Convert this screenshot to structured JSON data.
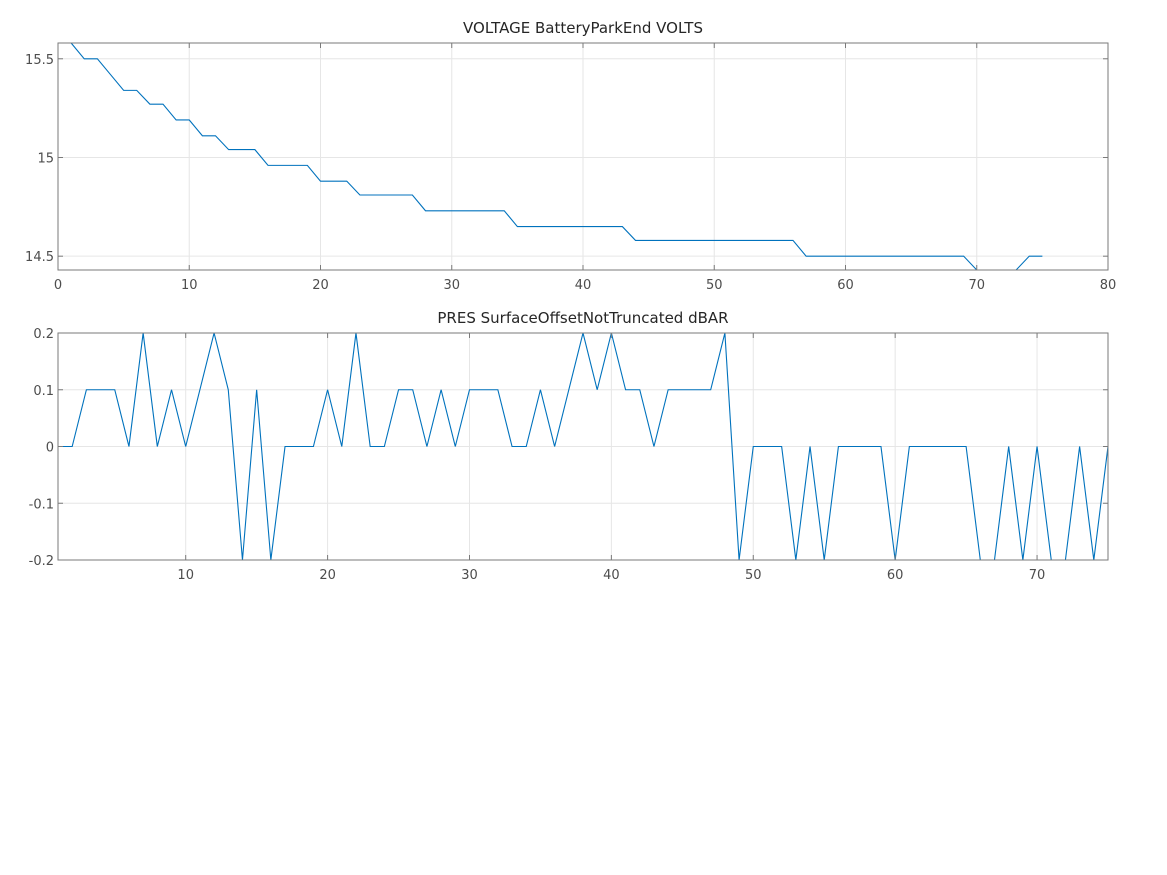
{
  "chart_data": [
    {
      "type": "line",
      "title": "VOLTAGE BatteryParkEnd VOLTS",
      "xlim": [
        0,
        80
      ],
      "ylim": [
        14.43,
        15.58
      ],
      "xticks": [
        0,
        10,
        20,
        30,
        40,
        50,
        60,
        70,
        80
      ],
      "yticks": [
        14.5,
        15,
        15.5
      ],
      "xtick_labels": [
        "0",
        "10",
        "20",
        "30",
        "40",
        "50",
        "60",
        "70",
        "80"
      ],
      "ytick_labels": [
        "14.5",
        "15",
        "15.5"
      ],
      "grid": true,
      "color": "#0072bd",
      "x": [
        1,
        2,
        3,
        4,
        5,
        6,
        7,
        8,
        9,
        10,
        11,
        12,
        13,
        14,
        15,
        16,
        17,
        18,
        19,
        20,
        21,
        22,
        23,
        24,
        25,
        26,
        27,
        28,
        29,
        30,
        31,
        32,
        33,
        34,
        35,
        36,
        37,
        38,
        39,
        40,
        41,
        42,
        43,
        44,
        45,
        46,
        47,
        48,
        49,
        50,
        51,
        52,
        53,
        54,
        55,
        56,
        57,
        58,
        59,
        60,
        61,
        62,
        63,
        64,
        65,
        66,
        67,
        68,
        69,
        70,
        71,
        72,
        73,
        74,
        75
      ],
      "y": [
        15.58,
        15.5,
        15.5,
        15.42,
        15.34,
        15.34,
        15.27,
        15.27,
        15.19,
        15.19,
        15.11,
        15.11,
        15.04,
        15.04,
        15.04,
        14.96,
        14.96,
        14.96,
        14.96,
        14.88,
        14.88,
        14.88,
        14.81,
        14.81,
        14.81,
        14.81,
        14.81,
        14.73,
        14.73,
        14.73,
        14.73,
        14.73,
        14.73,
        14.73,
        14.65,
        14.65,
        14.65,
        14.65,
        14.65,
        14.65,
        14.65,
        14.65,
        14.65,
        14.58,
        14.58,
        14.58,
        14.58,
        14.58,
        14.58,
        14.58,
        14.58,
        14.58,
        14.58,
        14.58,
        14.58,
        14.58,
        14.5,
        14.5,
        14.5,
        14.5,
        14.5,
        14.5,
        14.5,
        14.5,
        14.5,
        14.5,
        14.5,
        14.5,
        14.5,
        14.43,
        14.43,
        14.43,
        14.43,
        14.5,
        14.5
      ]
    },
    {
      "type": "line",
      "title": "PRES SurfaceOffsetNotTruncated dBAR",
      "xlim": [
        1,
        75
      ],
      "ylim": [
        -0.2,
        0.2
      ],
      "xticks": [
        10,
        20,
        30,
        40,
        50,
        60,
        70
      ],
      "yticks": [
        -0.2,
        -0.1,
        0,
        0.1,
        0.2
      ],
      "xtick_labels": [
        "10",
        "20",
        "30",
        "40",
        "50",
        "60",
        "70"
      ],
      "ytick_labels": [
        "-0.2",
        "-0.1",
        "0",
        "0.1",
        "0.2"
      ],
      "grid": true,
      "color": "#0072bd",
      "x": [
        1,
        2,
        3,
        4,
        5,
        6,
        7,
        8,
        9,
        10,
        11,
        12,
        13,
        14,
        15,
        16,
        17,
        18,
        19,
        20,
        21,
        22,
        23,
        24,
        25,
        26,
        27,
        28,
        29,
        30,
        31,
        32,
        33,
        34,
        35,
        36,
        37,
        38,
        39,
        40,
        41,
        42,
        43,
        44,
        45,
        46,
        47,
        48,
        49,
        50,
        51,
        52,
        53,
        54,
        55,
        56,
        57,
        58,
        59,
        60,
        61,
        62,
        63,
        64,
        65,
        66,
        67,
        68,
        69,
        70,
        71,
        72,
        73,
        74,
        75
      ],
      "y": [
        0,
        0,
        0.1,
        0.1,
        0.1,
        0,
        0.2,
        0,
        0.1,
        0,
        0.1,
        0.2,
        0.1,
        -0.2,
        0.1,
        -0.2,
        0,
        0,
        0,
        0.1,
        0,
        0.2,
        0,
        0,
        0.1,
        0.1,
        0,
        0.1,
        0,
        0.1,
        0.1,
        0.1,
        0,
        0,
        0.1,
        0,
        0.1,
        0.2,
        0.1,
        0.2,
        0.1,
        0.1,
        0,
        0.1,
        0.1,
        0.1,
        0.1,
        0.2,
        -0.2,
        0,
        0,
        0,
        -0.2,
        0,
        -0.2,
        0,
        0,
        0,
        0,
        -0.2,
        0,
        0,
        0,
        0,
        0,
        -0.2,
        -0.2,
        0,
        -0.2,
        0,
        -0.2,
        -0.2,
        0,
        -0.2,
        0
      ]
    }
  ]
}
